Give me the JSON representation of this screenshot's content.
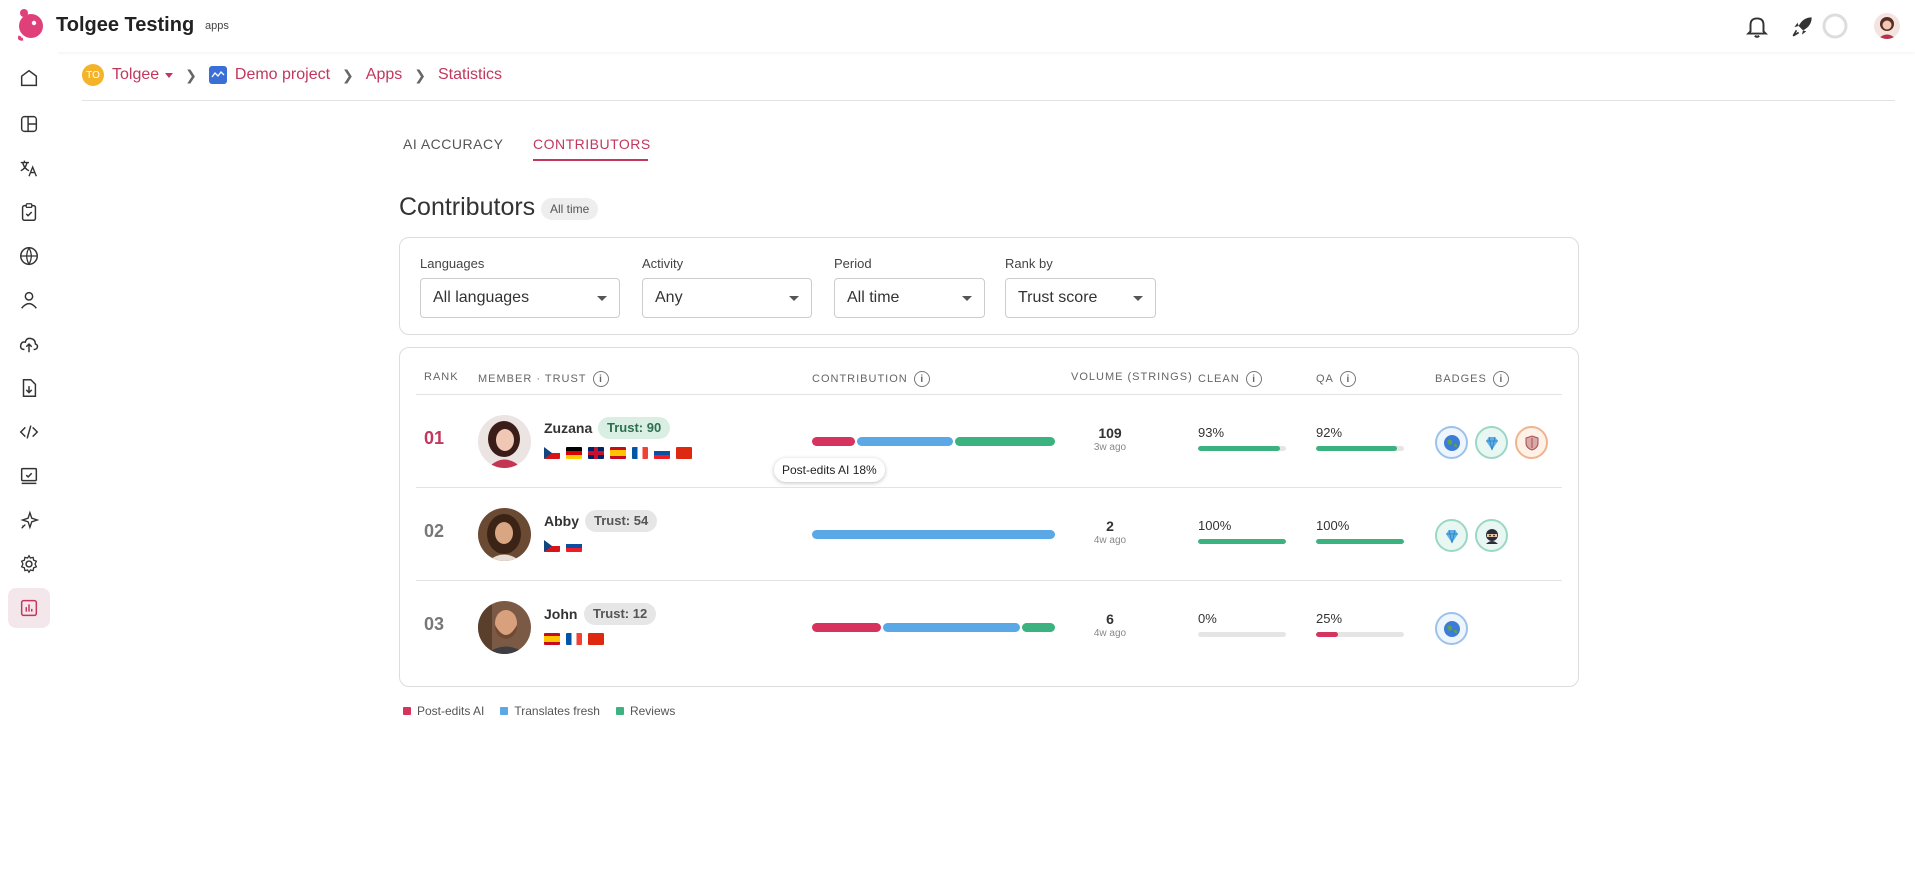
{
  "app": {
    "title": "Tolgee Testing",
    "subtitle": "apps",
    "brand_color": "#c2375c"
  },
  "breadcrumb": {
    "org_initials": "TO",
    "org": "Tolgee",
    "project": "Demo project",
    "section": "Apps",
    "page": "Statistics"
  },
  "tabs": [
    {
      "label": "AI ACCURACY",
      "active": false
    },
    {
      "label": "CONTRIBUTORS",
      "active": true
    }
  ],
  "heading": {
    "title": "Contributors",
    "chip": "All time"
  },
  "filters": {
    "languages": {
      "label": "Languages",
      "value": "All languages"
    },
    "activity": {
      "label": "Activity",
      "value": "Any"
    },
    "period": {
      "label": "Period",
      "value": "All time"
    },
    "rank_by": {
      "label": "Rank by",
      "value": "Trust score"
    }
  },
  "table": {
    "headers": {
      "rank": "RANK",
      "member": "MEMBER · TRUST",
      "contribution": "CONTRIBUTION",
      "volume": "VOLUME (STRINGS)",
      "clean": "CLEAN",
      "qa": "QA",
      "badges": "BADGES"
    },
    "rows": [
      {
        "rank": "01",
        "name": "Zuzana",
        "trust": "Trust: 90",
        "flags": [
          "cz",
          "de",
          "gb",
          "es",
          "fr",
          "sk",
          "cn"
        ],
        "contribution": {
          "post_edits_ai": 18,
          "translates_fresh": 40,
          "reviews": 42
        },
        "volume": "109",
        "volume_time": "3w ago",
        "clean": "93%",
        "clean_value": 93,
        "qa": "92%",
        "qa_value": 92,
        "badges": [
          "globe-badge",
          "diamond-badge",
          "shield-badge"
        ]
      },
      {
        "rank": "02",
        "name": "Abby",
        "trust": "Trust: 54",
        "flags": [
          "cz",
          "sk"
        ],
        "contribution": {
          "post_edits_ai": 0,
          "translates_fresh": 100,
          "reviews": 0
        },
        "volume": "2",
        "volume_time": "4w ago",
        "clean": "100%",
        "clean_value": 100,
        "qa": "100%",
        "qa_value": 100,
        "badges": [
          "diamond-badge",
          "ninja-badge"
        ]
      },
      {
        "rank": "03",
        "name": "John",
        "trust": "Trust: 12",
        "flags": [
          "es",
          "fr",
          "cn"
        ],
        "contribution": {
          "post_edits_ai": 29,
          "translates_fresh": 57,
          "reviews": 14
        },
        "volume": "6",
        "volume_time": "4w ago",
        "clean": "0%",
        "clean_value": 0,
        "qa": "25%",
        "qa_value": 25,
        "badges": [
          "globe-badge"
        ]
      }
    ]
  },
  "tooltip": "Post-edits AI 18%",
  "legend": [
    {
      "label": "Post-edits AI",
      "color": "#d6335f"
    },
    {
      "label": "Translates fresh",
      "color": "#5aa9e6"
    },
    {
      "label": "Reviews",
      "color": "#3bb27f"
    }
  ]
}
